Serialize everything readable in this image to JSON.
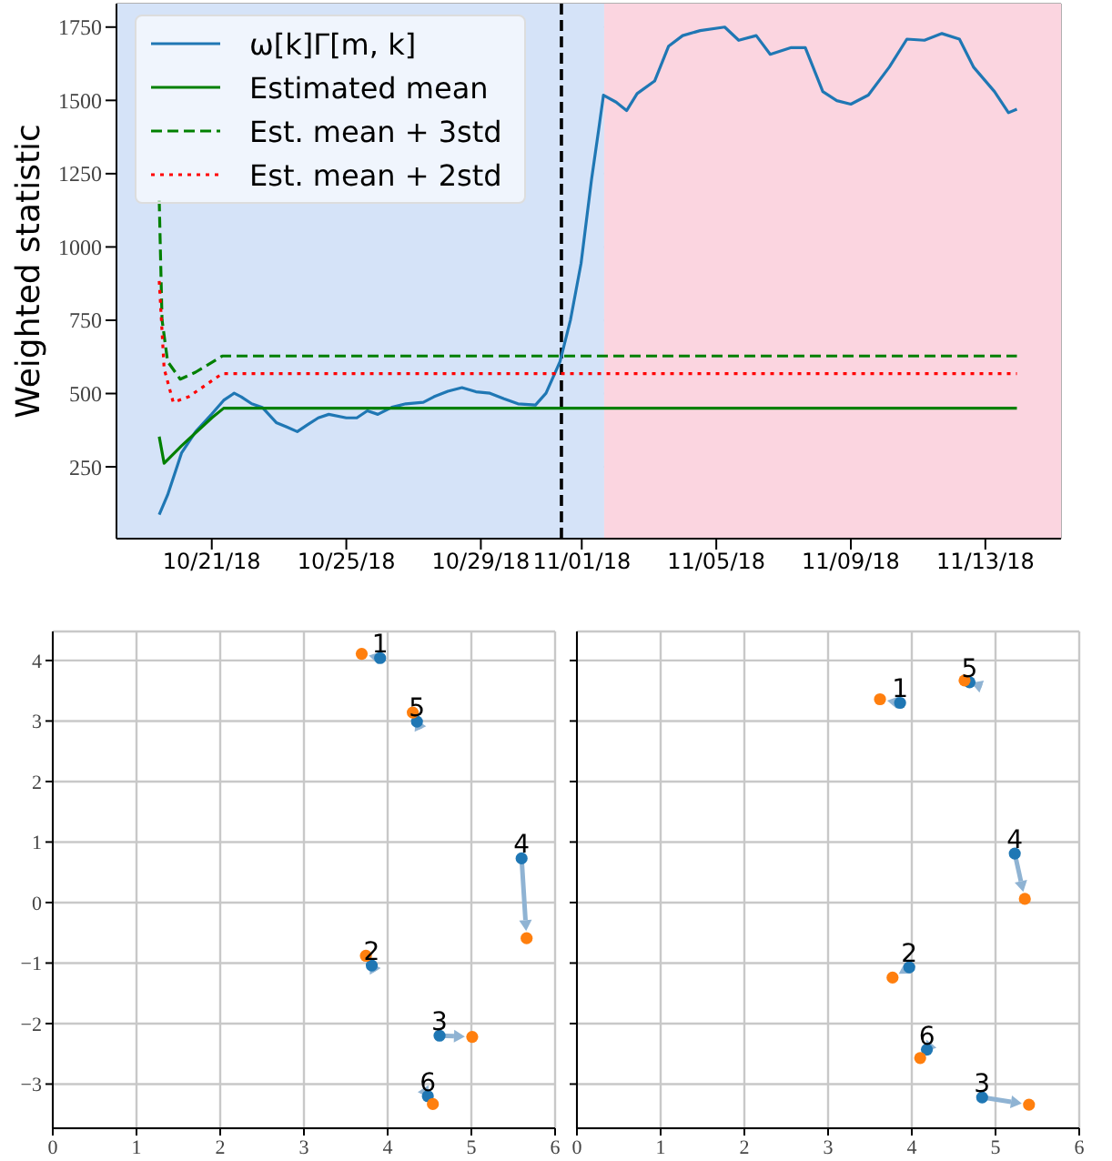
{
  "chart_data": [
    {
      "type": "line",
      "ylabel": "Weighted statistic",
      "grid": true,
      "legend": "top left",
      "xlim": [
        "--10-18T04:00",
        "--11-15T06:00"
      ],
      "ylim": [
        5,
        1830
      ],
      "xticks": [
        {
          "value": "--10-21",
          "label": "10/21/18"
        },
        {
          "value": "--10-25",
          "label": "10/25/18"
        },
        {
          "value": "--10-29",
          "label": "10/29/18"
        },
        {
          "value": "--11-01",
          "label": "11/01/18"
        },
        {
          "value": "--11-05",
          "label": "11/05/18"
        },
        {
          "value": "--11-09",
          "label": "11/09/18"
        },
        {
          "value": "--11-13",
          "label": "11/13/18"
        }
      ],
      "yticks": [
        250,
        500,
        750,
        1000,
        1250,
        1500,
        1750
      ],
      "bands": [
        {
          "axis": "x",
          "from": "--10-18T04:00",
          "to": "--11-01T16:00",
          "color": "#d5e3f8"
        },
        {
          "axis": "x",
          "from": "--11-01T16:00",
          "to": "--11-15T06:00",
          "color": "#fbd5e0"
        }
      ],
      "ref_lines": [
        {
          "axis": "x",
          "value": "--10-31T09:30",
          "color": "#000000",
          "line_style": "dashed"
        }
      ],
      "series": [
        {
          "name": "ω[k]Γ[m, k]",
          "color": "#1f77b4",
          "line_style": "solid",
          "x": [
            "--10-19T10:30",
            "--10-19T16:30",
            "--10-20T02:30",
            "--10-20T12:30",
            "--10-21T00:00",
            "--10-21T08:30",
            "--10-21T16:00",
            "--10-21T21:00",
            "--10-22T04:30",
            "--10-22T12:00",
            "--10-22T22:00",
            "--10-23T05:30",
            "--10-23T13:00",
            "--10-23T20:30",
            "--10-24T04:00",
            "--10-24T11:30",
            "--10-25T00:00",
            "--10-25T07:30",
            "--10-25T15:00",
            "--10-25T22:30",
            "--10-26T08:30",
            "--10-26T18:30",
            "--10-27T07:00",
            "--10-27T14:30",
            "--10-28T00:30",
            "--10-28T10:30",
            "--10-28T20:30",
            "--10-29T06:30",
            "--10-29T16:30",
            "--10-30T02:30",
            "--10-30T15:00",
            "--10-30T22:30",
            "--10-31T08:30",
            "--10-31T16:00",
            "--10-31T23:30",
            "--11-01T07:00",
            "--11-01T12:00",
            "--11-01T15:30",
            "--11-02T00:30",
            "--11-02T08:00",
            "--11-02T15:30",
            "--11-03T04:00",
            "--11-03T14:00",
            "--11-04T00:00",
            "--11-04T12:30",
            "--11-05T06:00",
            "--11-05T16:00",
            "--11-06T04:30",
            "--11-06T14:30",
            "--11-07T05:30",
            "--11-07T15:30",
            "--11-08T04:00",
            "--11-08T14:00",
            "--11-09T00:00",
            "--11-09T12:30",
            "--11-10T03:30",
            "--11-10T16:00",
            "--11-11T04:30",
            "--11-11T17:00",
            "--11-12T05:30",
            "--11-12T15:30",
            "--11-13T06:30",
            "--11-13T16:30",
            "--11-13T22:30"
          ],
          "values": [
            87,
            154,
            298,
            370,
            430,
            477,
            501,
            489,
            465,
            453,
            401,
            386,
            370,
            394,
            417,
            429,
            417,
            417,
            441,
            429,
            453,
            465,
            470,
            489,
            508,
            520,
            506,
            501,
            482,
            465,
            461,
            501,
            609,
            752,
            944,
            1231,
            1398,
            1518,
            1494,
            1465,
            1523,
            1566,
            1685,
            1721,
            1738,
            1750,
            1705,
            1721,
            1657,
            1680,
            1680,
            1530,
            1499,
            1487,
            1518,
            1614,
            1709,
            1705,
            1728,
            1709,
            1614,
            1530,
            1458,
            1470
          ]
        },
        {
          "name": "Estimated mean",
          "color": "#008000",
          "line_style": "solid",
          "x": [
            "--10-19T10:30",
            "--10-19T14:00",
            "--10-20T02:30",
            "--10-21T00:00",
            "--10-21T08:30",
            "--11-13T22:30"
          ],
          "values": [
            353,
            262,
            322,
            417,
            450,
            450
          ]
        },
        {
          "name": "Est. mean + 3std",
          "color": "#008000",
          "line_style": "dashed",
          "x": [
            "--10-19T10:30",
            "--10-19T12:30",
            "--10-19T16:30",
            "--10-20T01:30",
            "--10-20T12:30",
            "--10-21T07:30",
            "--11-13T22:30"
          ],
          "values": [
            1159,
            752,
            609,
            549,
            573,
            628,
            628
          ]
        },
        {
          "name": "Est. mean + 2std",
          "color": "#ff0000",
          "line_style": "dotted",
          "x": [
            "--10-19T10:30",
            "--10-19T14:00",
            "--10-19T20:30",
            "--10-20T07:30",
            "--10-21T07:30",
            "--11-13T22:30"
          ],
          "values": [
            884,
            585,
            470,
            489,
            568,
            568
          ]
        }
      ]
    },
    {
      "type": "scatter",
      "grid": true,
      "marker": "circle",
      "xlim": [
        0,
        6
      ],
      "ylim": [
        -3.73,
        4.48
      ],
      "xticks": [
        0,
        1,
        2,
        3,
        4,
        5,
        6
      ],
      "yticks": [
        -3,
        -2,
        -1,
        0,
        1,
        2,
        3,
        4
      ],
      "annotations": [
        {
          "text": "1",
          "x": 3.91,
          "y": 4.04
        },
        {
          "text": "2",
          "x": 3.81,
          "y": -1.04
        },
        {
          "text": "3",
          "x": 4.62,
          "y": -2.2
        },
        {
          "text": "4",
          "x": 5.6,
          "y": 0.73
        },
        {
          "text": "5",
          "x": 4.35,
          "y": 2.99
        },
        {
          "text": "6",
          "x": 4.48,
          "y": -3.2
        }
      ],
      "series": [
        {
          "color": "#1f77b4",
          "x": [
            3.91,
            3.81,
            4.62,
            5.6,
            4.35,
            4.48
          ],
          "values": [
            4.04,
            -1.04,
            -2.2,
            0.73,
            2.99,
            -3.2
          ]
        },
        {
          "color": "#ff7f0e",
          "x": [
            3.69,
            3.74,
            5.01,
            5.66,
            4.3,
            4.54
          ],
          "values": [
            4.11,
            -0.88,
            -2.22,
            -0.59,
            3.14,
            -3.33
          ]
        }
      ]
    },
    {
      "type": "scatter",
      "grid": true,
      "marker": "circle",
      "tick_labels": "x",
      "xlim": [
        0,
        6
      ],
      "ylim": [
        -3.73,
        4.48
      ],
      "xticks": [
        0,
        1,
        2,
        3,
        4,
        5,
        6
      ],
      "yticks": [
        -3,
        -2,
        -1,
        0,
        1,
        2,
        3,
        4
      ],
      "annotations": [
        {
          "text": "1",
          "x": 3.86,
          "y": 3.3
        },
        {
          "text": "2",
          "x": 3.97,
          "y": -1.07
        },
        {
          "text": "3",
          "x": 4.84,
          "y": -3.22
        },
        {
          "text": "4",
          "x": 5.23,
          "y": 0.81
        },
        {
          "text": "5",
          "x": 4.69,
          "y": 3.64
        },
        {
          "text": "6",
          "x": 4.18,
          "y": -2.43
        }
      ],
      "series": [
        {
          "color": "#1f77b4",
          "x": [
            3.86,
            3.97,
            4.84,
            5.23,
            4.69,
            4.18
          ],
          "values": [
            3.3,
            -1.07,
            -3.22,
            0.81,
            3.64,
            -2.43
          ]
        },
        {
          "color": "#ff7f0e",
          "x": [
            3.62,
            3.77,
            5.4,
            5.35,
            4.63,
            4.1
          ],
          "values": [
            3.36,
            -1.24,
            -3.34,
            0.06,
            3.67,
            -2.57
          ]
        }
      ]
    }
  ]
}
